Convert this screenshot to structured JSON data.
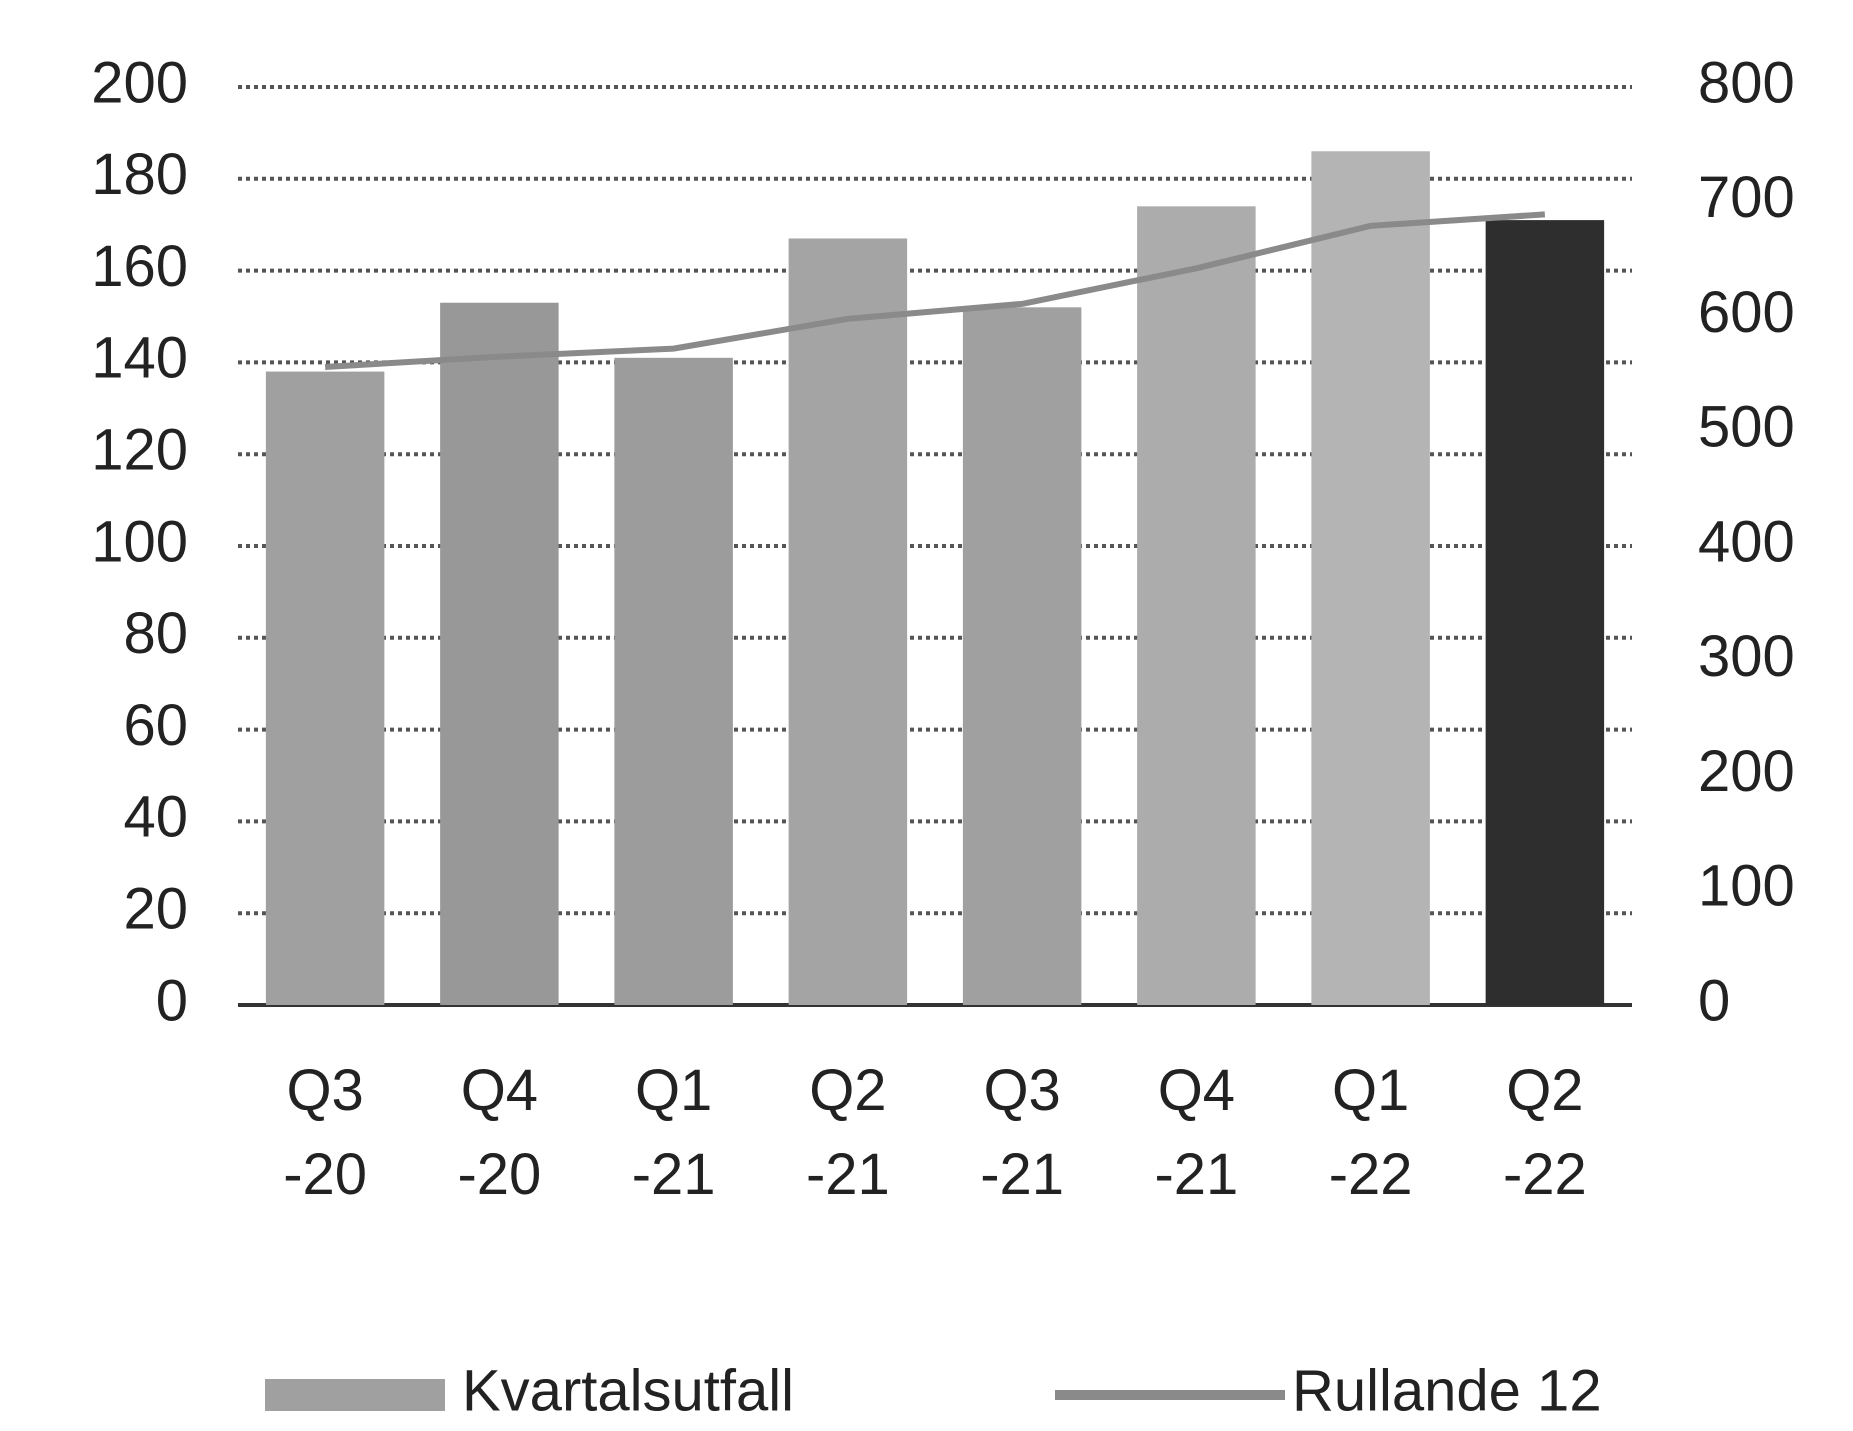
{
  "chart_data": {
    "type": "bar",
    "categories": [
      "Q3 -20",
      "Q4 -20",
      "Q1 -21",
      "Q2 -21",
      "Q3 -21",
      "Q4 -21",
      "Q1 -22",
      "Q2 -22"
    ],
    "series": [
      {
        "name": "Kvartalsutfall",
        "colors": [
          "#a0a0a0",
          "#989898",
          "#9c9c9c",
          "#a4a4a4",
          "#a0a0a0",
          "#acacac",
          "#b4b4b4",
          "#2e2e2e"
        ],
        "values": [
          138,
          153,
          141,
          167,
          152,
          174,
          186,
          171
        ]
      },
      {
        "name": "Rullande 12",
        "type": "line",
        "axis": "y2",
        "color": "#8a8a8a",
        "values": [
          556,
          565,
          572,
          598,
          611,
          642,
          679,
          689
        ]
      }
    ],
    "ylim": [
      0,
      200
    ],
    "yticks": [
      0,
      20,
      40,
      60,
      80,
      100,
      120,
      140,
      160,
      180,
      200
    ],
    "y2lim": [
      0,
      800
    ],
    "y2ticks": [
      0,
      100,
      200,
      300,
      400,
      500,
      600,
      700,
      800
    ],
    "grid": true
  }
}
